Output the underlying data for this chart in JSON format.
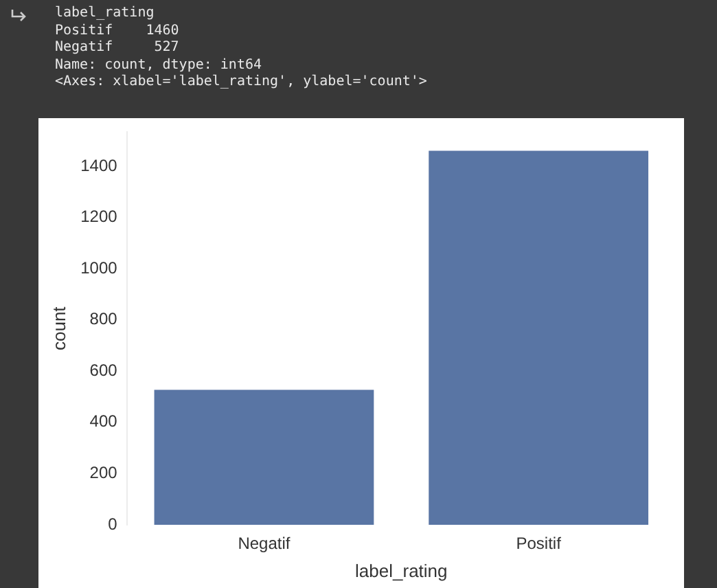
{
  "chart_data": {
    "type": "bar",
    "annotations": [
      "label_rating",
      "Positif    1460",
      "Negatif     527",
      "Name: count, dtype: int64",
      "<Axes: xlabel='label_rating', ylabel='count'>"
    ],
    "xlabel": "label_rating",
    "ylabel": "count",
    "categories": [
      "Negatif",
      "Positif"
    ],
    "values": [
      527,
      1460
    ],
    "color": "#5975a4",
    "ylim": [
      0,
      1533
    ],
    "yticks": [
      0,
      200,
      400,
      600,
      800,
      1000,
      1200,
      1400
    ],
    "grid": false,
    "legend": false
  }
}
